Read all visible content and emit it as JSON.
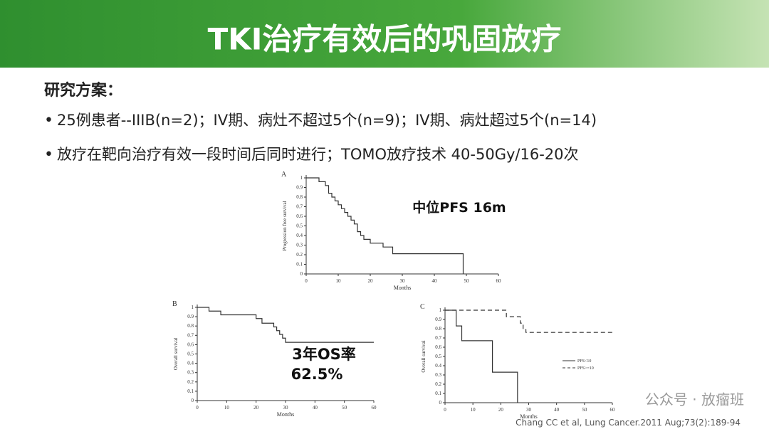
{
  "slide": {
    "title": "TKI治疗有效后的巩固放疗",
    "heading": "研究方案：",
    "bullets": [
      "25例患者--IIIB(n=2)；IV期、病灶不超过5个(n=9)；IV期、病灶超过5个(n=14)",
      "放疗在靶向治疗有效一段时间后同时进行；TOMO放疗技术 40-50Gy/16-20次"
    ],
    "citation": "Chang CC et al, Lung Cancer.2011 Aug;73(2):189-94",
    "watermark": "公众号 · 放瘤班"
  },
  "chart_data": [
    {
      "type": "step",
      "panel": "A",
      "xlabel": "Months",
      "ylabel": "Progression free survival",
      "annotation": [
        "中位PFS 16m"
      ],
      "xlim": [
        0,
        60
      ],
      "ylim": [
        0,
        1
      ],
      "xticks": [
        0,
        10,
        20,
        30,
        40,
        50,
        60
      ],
      "yticks": [
        0,
        0.1,
        0.2,
        0.3,
        0.4,
        0.5,
        0.6,
        0.7,
        0.8,
        0.9,
        1
      ],
      "series": [
        {
          "name": "PFS",
          "color": "#333333",
          "x": [
            0,
            4,
            6,
            7,
            8,
            9,
            10,
            11,
            12,
            13,
            14,
            15,
            16,
            17,
            18,
            20,
            24,
            27,
            49,
            49
          ],
          "values": [
            1,
            0.96,
            0.92,
            0.84,
            0.8,
            0.76,
            0.72,
            0.68,
            0.64,
            0.6,
            0.56,
            0.52,
            0.44,
            0.4,
            0.36,
            0.32,
            0.28,
            0.21,
            0.21,
            0
          ]
        }
      ]
    },
    {
      "type": "step",
      "panel": "B",
      "xlabel": "Months",
      "ylabel": "Overall survival",
      "annotation": [
        "3年OS率",
        "62.5%"
      ],
      "xlim": [
        0,
        60
      ],
      "ylim": [
        0,
        1
      ],
      "xticks": [
        0,
        10,
        20,
        30,
        40,
        50,
        60
      ],
      "yticks": [
        0,
        0.1,
        0.2,
        0.3,
        0.4,
        0.5,
        0.6,
        0.7,
        0.8,
        0.9,
        1
      ],
      "series": [
        {
          "name": "OS",
          "color": "#333333",
          "x": [
            0,
            4,
            8,
            20,
            22,
            26,
            27,
            28,
            29,
            30,
            60
          ],
          "values": [
            1,
            0.96,
            0.92,
            0.88,
            0.83,
            0.79,
            0.75,
            0.71,
            0.67,
            0.625,
            0.625
          ]
        }
      ]
    },
    {
      "type": "step",
      "panel": "C",
      "xlabel": "Months",
      "ylabel": "Overall survival",
      "annotation": [],
      "xlim": [
        0,
        60
      ],
      "ylim": [
        0,
        1
      ],
      "xticks": [
        0,
        10,
        20,
        30,
        40,
        50,
        60
      ],
      "yticks": [
        0,
        0.1,
        0.2,
        0.3,
        0.4,
        0.5,
        0.6,
        0.7,
        0.8,
        0.9,
        1
      ],
      "series": [
        {
          "name": "PFS<10",
          "color": "#333333",
          "dash": false,
          "x": [
            0,
            4,
            6,
            17,
            26,
            26
          ],
          "values": [
            1,
            0.83,
            0.67,
            0.33,
            0.33,
            0
          ]
        },
        {
          "name": "PFS>=10",
          "color": "#333333",
          "dash": true,
          "x": [
            0,
            22,
            27,
            28,
            29,
            60
          ],
          "values": [
            1,
            0.93,
            0.86,
            0.79,
            0.76,
            0.76
          ]
        }
      ]
    }
  ]
}
